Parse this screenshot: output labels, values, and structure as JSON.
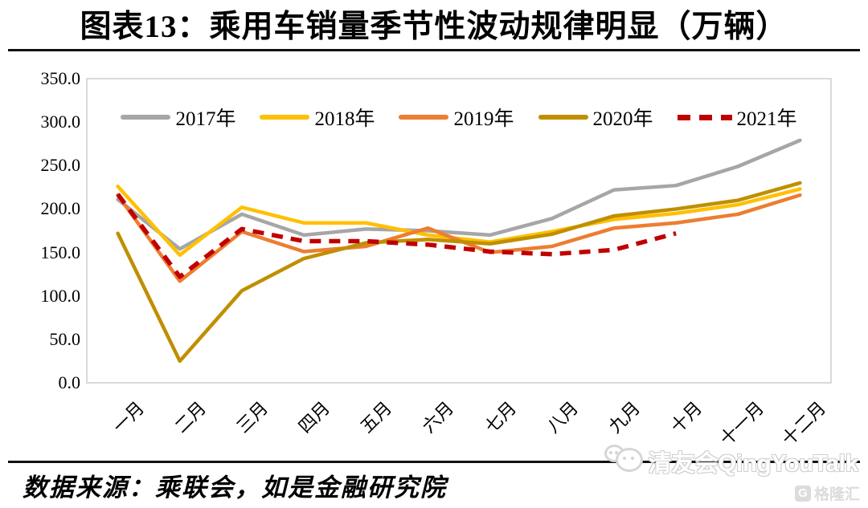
{
  "title": "图表13：乘用车销量季节性波动规律明显（万辆）",
  "source_note": "数据来源：乘联会，如是金融研究院",
  "watermark": {
    "text": "清友会QingYouTalk",
    "logo_letter": "G",
    "logo_text": "格隆汇"
  },
  "colors": {
    "rule": "#111111",
    "plot_border": "#D9D9D9",
    "series_2017": "#A6A6A6",
    "series_2018": "#FFC000",
    "series_2019": "#ED7D31",
    "series_2020": "#BF8F00",
    "series_2021": "#C00000",
    "watermark_gray": "#d6d6d6"
  },
  "chart_data": {
    "type": "line",
    "title": "乘用车销量季节性波动规律明显",
    "unit": "万辆",
    "xlabel": "",
    "ylabel": "",
    "ylim": [
      0,
      350
    ],
    "yticks": [
      "350.0",
      "300.0",
      "250.0",
      "200.0",
      "150.0",
      "100.0",
      "50.0",
      "0.0"
    ],
    "grid": false,
    "legend_position": "top-center",
    "categories": [
      "一月",
      "二月",
      "三月",
      "四月",
      "五月",
      "六月",
      "七月",
      "八月",
      "九月",
      "十月",
      "十一月",
      "十二月"
    ],
    "series": [
      {
        "name": "2017年",
        "color": "#A6A6A6",
        "style": "solid",
        "values": [
          211,
          154,
          194,
          170,
          177,
          175,
          170,
          189,
          222,
          227,
          249,
          279
        ]
      },
      {
        "name": "2018年",
        "color": "#FFC000",
        "style": "solid",
        "values": [
          226,
          147,
          202,
          184,
          184,
          170,
          162,
          174,
          188,
          195,
          205,
          223
        ]
      },
      {
        "name": "2019年",
        "color": "#ED7D31",
        "style": "solid",
        "values": [
          216,
          117,
          174,
          151,
          157,
          178,
          150,
          157,
          178,
          184,
          194,
          216
        ]
      },
      {
        "name": "2020年",
        "color": "#BF8F00",
        "style": "solid",
        "values": [
          172,
          25,
          106,
          143,
          161,
          165,
          160,
          171,
          192,
          200,
          210,
          230
        ]
      },
      {
        "name": "2021年",
        "color": "#C00000",
        "style": "dashed",
        "values": [
          217,
          122,
          177,
          163,
          163,
          159,
          151,
          148,
          153,
          172,
          null,
          null
        ]
      }
    ]
  }
}
